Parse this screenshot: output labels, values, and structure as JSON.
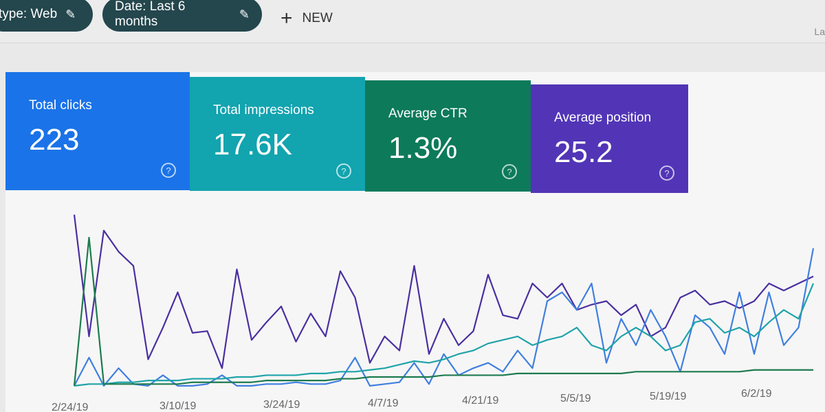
{
  "filters": [
    {
      "label": "type: Web",
      "icon": "pencil-icon"
    },
    {
      "label": "Date: Last 6 months",
      "icon": "pencil-icon"
    }
  ],
  "new_button": {
    "label": "NEW",
    "icon": "plus-icon"
  },
  "right_text": "La",
  "cards": [
    {
      "label": "Total clicks",
      "value": "223",
      "color": "#1a73e8"
    },
    {
      "label": "Total impressions",
      "value": "17.6K",
      "color": "#12a4af"
    },
    {
      "label": "Average CTR",
      "value": "1.3%",
      "color": "#0d7a5a"
    },
    {
      "label": "Average position",
      "value": "25.2",
      "color": "#5135b6"
    }
  ],
  "chart_data": {
    "type": "line",
    "x_tick_labels": [
      "2/24/19",
      "3/10/19",
      "3/24/19",
      "4/7/19",
      "4/21/19",
      "5/5/19",
      "5/19/19",
      "6/2/19"
    ],
    "x_interval_days": 2,
    "grid": false,
    "series": [
      {
        "metric": "Average position",
        "color": "#4a2fa0",
        "values": [
          99,
          30,
          90,
          78,
          70,
          17,
          35,
          55,
          32,
          33,
          12,
          68,
          28,
          38,
          47,
          27,
          43,
          30,
          67,
          52,
          15,
          30,
          22,
          70,
          20,
          40,
          25,
          33,
          65,
          42,
          40,
          60,
          52,
          60,
          45,
          48,
          50,
          42,
          48,
          30,
          35,
          52,
          56,
          48,
          50,
          46,
          50,
          60,
          56,
          60,
          64
        ]
      },
      {
        "metric": "Total clicks",
        "color": "#3f7fe0",
        "values": [
          2,
          18,
          2,
          12,
          3,
          2,
          8,
          2,
          2,
          3,
          8,
          2,
          2,
          3,
          3,
          4,
          3,
          3,
          5,
          18,
          2,
          3,
          4,
          15,
          3,
          20,
          8,
          12,
          15,
          10,
          22,
          12,
          50,
          55,
          45,
          60,
          15,
          40,
          25,
          45,
          30,
          10,
          42,
          35,
          20,
          55,
          20,
          55,
          25,
          35,
          80
        ]
      },
      {
        "metric": "Total impressions",
        "color": "#1fa3a8",
        "values": [
          2,
          3,
          3,
          4,
          4,
          5,
          5,
          5,
          6,
          6,
          6,
          7,
          7,
          8,
          8,
          8,
          9,
          9,
          10,
          10,
          11,
          12,
          14,
          16,
          15,
          17,
          20,
          22,
          26,
          28,
          30,
          25,
          28,
          30,
          35,
          25,
          22,
          30,
          35,
          30,
          22,
          25,
          38,
          40,
          32,
          35,
          30,
          38,
          45,
          40,
          60
        ]
      },
      {
        "metric": "Average CTR",
        "color": "#1c7a4e",
        "values": [
          2,
          86,
          3,
          3,
          3,
          3,
          3,
          3,
          4,
          4,
          4,
          4,
          4,
          5,
          5,
          5,
          5,
          5,
          6,
          6,
          7,
          7,
          7,
          7,
          7,
          8,
          8,
          8,
          8,
          8,
          9,
          9,
          9,
          9,
          9,
          9,
          9,
          9,
          10,
          10,
          10,
          10,
          10,
          10,
          10,
          10,
          11,
          11,
          11,
          11,
          11
        ]
      }
    ]
  }
}
